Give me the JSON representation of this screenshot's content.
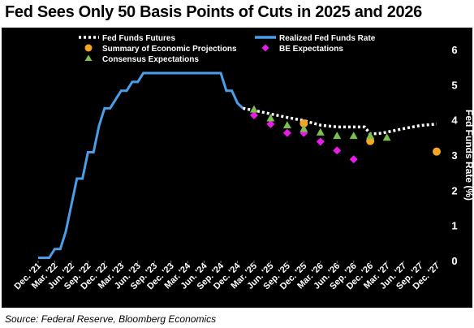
{
  "title": "Fed Sees Only 50 Basis Points of Cuts in 2025 and 2026",
  "source": "Source: Federal Reserve, Bloomberg Economics",
  "chart_data": {
    "type": "line",
    "title": "Fed Sees Only 50 Basis Points of Cuts in 2025 and 2026",
    "xlabel": "",
    "ylabel": "Fed Funds Rate (%)",
    "ylim": [
      0,
      6
    ],
    "y_ticks": [
      "0",
      "1",
      "2",
      "3",
      "4",
      "5",
      "6"
    ],
    "x_tick_labels": [
      "Dec. '21",
      "Mar. '22",
      "Jun. '22",
      "Sep. '22",
      "Dec. '22",
      "Mar. '23",
      "Jun. '23",
      "Sep. '23",
      "Dec. '23",
      "Mar. '24",
      "Jun. '24",
      "Sep. '24",
      "Dec. '24",
      "Mar. '25",
      "Jun. '25",
      "Sep. '25",
      "Dec. '25",
      "Mar. '26",
      "Jun. '26",
      "Sep. '26",
      "Dec. '26",
      "Mar. '27",
      "Jun. '27",
      "Sep. '27",
      "Dec. '27"
    ],
    "grid": false,
    "legend_position": "top",
    "legend": {
      "futures": "Fed Funds Futures",
      "realized": "Realized Fed Funds Rate",
      "sep": "Summary of Economic Projections",
      "be": "BE Expectations",
      "consensus": "Consensus Expectations"
    },
    "colors": {
      "background": "#000000",
      "realized": "#4a9ee8",
      "futures": "#ffffff",
      "sep": "#f5a623",
      "be": "#e81ce8",
      "consensus": "#7dbf4f",
      "axis_text": "#ffffff"
    },
    "series": [
      {
        "name": "Realized Fed Funds Rate",
        "kind": "line",
        "points": [
          [
            "Dec. '21",
            0.08
          ],
          [
            "Feb. '22",
            0.08
          ],
          [
            "Mar. '22",
            0.33
          ],
          [
            "Apr. '22",
            0.33
          ],
          [
            "May '22",
            0.83
          ],
          [
            "Jun. '22",
            1.58
          ],
          [
            "Jul. '22",
            2.33
          ],
          [
            "Aug. '22",
            2.33
          ],
          [
            "Sep. '22",
            3.08
          ],
          [
            "Oct. '22",
            3.08
          ],
          [
            "Nov. '22",
            3.83
          ],
          [
            "Dec. '22",
            4.33
          ],
          [
            "Jan. '23",
            4.33
          ],
          [
            "Feb. '23",
            4.58
          ],
          [
            "Mar. '23",
            4.83
          ],
          [
            "Apr. '23",
            4.83
          ],
          [
            "May '23",
            5.08
          ],
          [
            "Jun. '23",
            5.08
          ],
          [
            "Jul. '23",
            5.33
          ],
          [
            "Sep. '24",
            5.33
          ],
          [
            "Oct. '24",
            4.83
          ],
          [
            "Nov. '24",
            4.83
          ],
          [
            "Dec. '24",
            4.48
          ],
          [
            "Jan. '25",
            4.33
          ]
        ]
      },
      {
        "name": "Fed Funds Futures",
        "kind": "dotted-line",
        "points": [
          [
            "Jan. '25",
            4.33
          ],
          [
            "Mar. '25",
            4.27
          ],
          [
            "Jun. '25",
            4.17
          ],
          [
            "Sep. '25",
            4.07
          ],
          [
            "Dec. '25",
            3.98
          ],
          [
            "Mar. '26",
            3.85
          ],
          [
            "Jun. '26",
            3.8
          ],
          [
            "Sep. '26",
            3.8
          ],
          [
            "Nov. '26",
            3.8
          ],
          [
            "Dec. '26",
            3.6
          ],
          [
            "Feb. '27",
            3.62
          ],
          [
            "Jun. '27",
            3.75
          ],
          [
            "Sep. '27",
            3.84
          ],
          [
            "Dec. '27",
            3.88
          ]
        ]
      },
      {
        "name": "Summary of Economic Projections",
        "kind": "circle",
        "points": [
          [
            "Dec. '25",
            3.9
          ],
          [
            "Dec. '26",
            3.4
          ],
          [
            "Dec. '27",
            3.1
          ]
        ]
      },
      {
        "name": "BE Expectations",
        "kind": "diamond",
        "points": [
          [
            "Mar. '25",
            4.13
          ],
          [
            "Jun. '25",
            3.88
          ],
          [
            "Sep. '25",
            3.63
          ],
          [
            "Dec. '25",
            3.63
          ],
          [
            "Mar. '26",
            3.38
          ],
          [
            "Jun. '26",
            3.13
          ],
          [
            "Sep. '26",
            2.88
          ]
        ]
      },
      {
        "name": "Consensus Expectations",
        "kind": "triangle",
        "points": [
          [
            "Mar. '25",
            4.3
          ],
          [
            "Jun. '25",
            4.05
          ],
          [
            "Sep. '25",
            3.85
          ],
          [
            "Dec. '25",
            3.75
          ],
          [
            "Mar. '26",
            3.65
          ],
          [
            "Jun. '26",
            3.55
          ],
          [
            "Sep. '26",
            3.55
          ],
          [
            "Dec. '26",
            3.55
          ],
          [
            "Mar. '27",
            3.5
          ]
        ]
      }
    ]
  }
}
